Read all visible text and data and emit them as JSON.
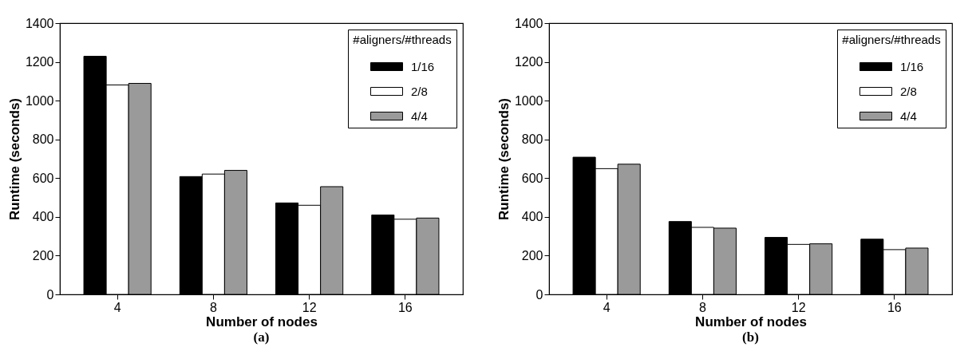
{
  "chart_data": [
    {
      "type": "bar",
      "xlabel": "Number of nodes",
      "ylabel": "Runtime (seconds)",
      "legend_title": "#aligners/#threads",
      "legend": "top right",
      "grid": false,
      "annotations": [
        "(a)"
      ],
      "categories": [
        "4",
        "8",
        "12",
        "16"
      ],
      "ylim": [
        0,
        1400
      ],
      "yticks": [
        0,
        200,
        400,
        600,
        800,
        1000,
        1200,
        1400
      ],
      "series": [
        {
          "name": "1/16",
          "color": "#000000",
          "values": [
            1229,
            608,
            472,
            410
          ]
        },
        {
          "name": "2/8",
          "color": "#ffffff",
          "values": [
            1081,
            621,
            460,
            388
          ]
        },
        {
          "name": "4/4",
          "color": "#9a9a9a",
          "values": [
            1089,
            640,
            556,
            394
          ]
        }
      ]
    },
    {
      "type": "bar",
      "xlabel": "Number of nodes",
      "ylabel": "Runtime (seconds)",
      "legend_title": "#aligners/#threads",
      "legend": "top right",
      "grid": false,
      "annotations": [
        "(b)"
      ],
      "categories": [
        "4",
        "8",
        "12",
        "16"
      ],
      "ylim": [
        0,
        1400
      ],
      "yticks": [
        0,
        200,
        400,
        600,
        800,
        1000,
        1200,
        1400
      ],
      "series": [
        {
          "name": "1/16",
          "color": "#000000",
          "values": [
            708,
            376,
            294,
            285
          ]
        },
        {
          "name": "2/8",
          "color": "#ffffff",
          "values": [
            649,
            346,
            258,
            231
          ]
        },
        {
          "name": "4/4",
          "color": "#9a9a9a",
          "values": [
            672,
            342,
            261,
            239
          ]
        }
      ]
    }
  ]
}
